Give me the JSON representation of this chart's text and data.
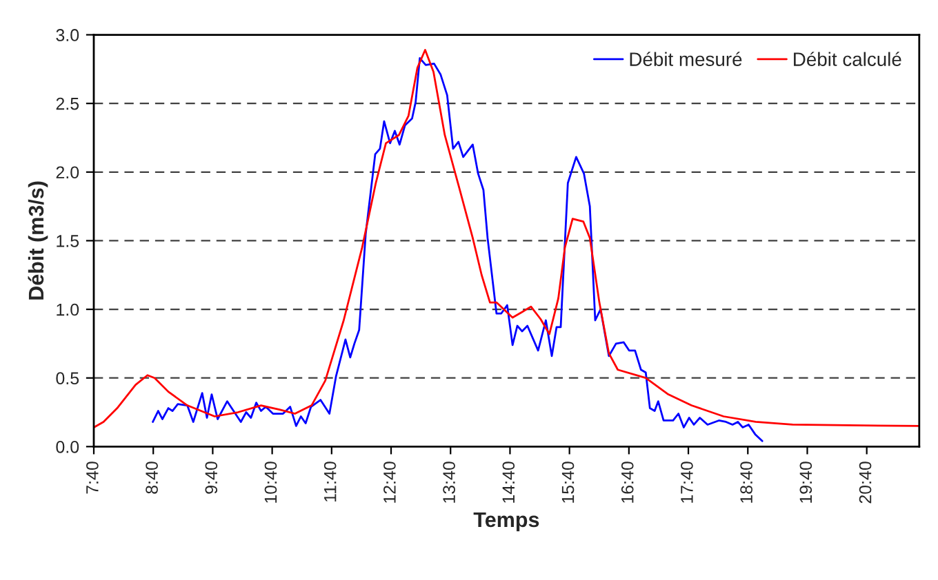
{
  "chart_data": {
    "type": "line",
    "xlabel": "Temps",
    "ylabel": "Débit (m3/s)",
    "xlim": [
      7.667,
      21.55
    ],
    "ylim": [
      0,
      3.0
    ],
    "xticks": [
      {
        "value": 7.667,
        "label": "7:40"
      },
      {
        "value": 8.667,
        "label": "8:40"
      },
      {
        "value": 9.667,
        "label": "9:40"
      },
      {
        "value": 10.667,
        "label": "10:40"
      },
      {
        "value": 11.667,
        "label": "11:40"
      },
      {
        "value": 12.667,
        "label": "12:40"
      },
      {
        "value": 13.667,
        "label": "13:40"
      },
      {
        "value": 14.667,
        "label": "14:40"
      },
      {
        "value": 15.667,
        "label": "15:40"
      },
      {
        "value": 16.667,
        "label": "16:40"
      },
      {
        "value": 17.667,
        "label": "17:40"
      },
      {
        "value": 18.667,
        "label": "18:40"
      },
      {
        "value": 19.667,
        "label": "19:40"
      },
      {
        "value": 20.667,
        "label": "20:40"
      }
    ],
    "yticks": [
      {
        "value": 0,
        "label": "0.0"
      },
      {
        "value": 0.5,
        "label": "0.5"
      },
      {
        "value": 1.0,
        "label": "1.0"
      },
      {
        "value": 1.5,
        "label": "1.5"
      },
      {
        "value": 2.0,
        "label": "2.0"
      },
      {
        "value": 2.5,
        "label": "2.5"
      },
      {
        "value": 3.0,
        "label": "3.0"
      }
    ],
    "grid": "y",
    "legend": "top right",
    "marker": "none",
    "line_style": "solid",
    "series": [
      {
        "name": "Débit mesuré",
        "color": "#0000ff",
        "x": [
          8.66,
          8.75,
          8.82,
          8.92,
          8.99,
          9.08,
          9.24,
          9.34,
          9.49,
          9.57,
          9.65,
          9.75,
          9.91,
          10.14,
          10.23,
          10.31,
          10.4,
          10.48,
          10.56,
          10.68,
          10.85,
          10.97,
          11.07,
          11.15,
          11.23,
          11.32,
          11.48,
          11.63,
          11.74,
          11.9,
          11.98,
          12.05,
          12.13,
          12.24,
          12.4,
          12.48,
          12.55,
          12.65,
          12.73,
          12.81,
          12.9,
          13.02,
          13.08,
          13.15,
          13.25,
          13.39,
          13.5,
          13.61,
          13.71,
          13.8,
          13.88,
          14.04,
          14.13,
          14.22,
          14.29,
          14.44,
          14.52,
          14.62,
          14.71,
          14.79,
          14.87,
          14.96,
          15.14,
          15.27,
          15.37,
          15.45,
          15.52,
          15.64,
          15.78,
          15.91,
          16.01,
          16.1,
          16.19,
          16.33,
          16.45,
          16.58,
          16.67,
          16.77,
          16.87,
          16.95,
          17.02,
          17.1,
          17.16,
          17.25,
          17.41,
          17.5,
          17.59,
          17.68,
          17.76,
          17.86,
          17.99,
          18.18,
          18.3,
          18.41,
          18.5,
          18.58,
          18.68,
          18.79,
          18.91
        ],
        "values": [
          0.18,
          0.26,
          0.2,
          0.28,
          0.26,
          0.31,
          0.3,
          0.18,
          0.39,
          0.21,
          0.38,
          0.2,
          0.33,
          0.18,
          0.25,
          0.21,
          0.32,
          0.26,
          0.29,
          0.24,
          0.24,
          0.29,
          0.15,
          0.22,
          0.17,
          0.29,
          0.34,
          0.24,
          0.51,
          0.78,
          0.65,
          0.75,
          0.85,
          1.55,
          2.13,
          2.17,
          2.37,
          2.21,
          2.3,
          2.2,
          2.34,
          2.39,
          2.51,
          2.83,
          2.78,
          2.79,
          2.71,
          2.56,
          2.17,
          2.22,
          2.11,
          2.2,
          1.99,
          1.87,
          1.52,
          0.97,
          0.97,
          1.03,
          0.74,
          0.88,
          0.84,
          0.88,
          0.7,
          0.92,
          0.66,
          0.87,
          0.87,
          1.92,
          2.11,
          1.99,
          1.75,
          0.92,
          1.0,
          0.66,
          0.75,
          0.76,
          0.7,
          0.7,
          0.56,
          0.54,
          0.28,
          0.26,
          0.33,
          0.19,
          0.19,
          0.24,
          0.14,
          0.21,
          0.16,
          0.21,
          0.16,
          0.19,
          0.18,
          0.16,
          0.18,
          0.14,
          0.16,
          0.09,
          0.04
        ]
      },
      {
        "name": "Débit calculé",
        "color": "#ff0000",
        "x": [
          7.667,
          7.83,
          8.06,
          8.37,
          8.57,
          8.69,
          8.92,
          9.24,
          9.7,
          10.09,
          10.48,
          10.79,
          11.05,
          11.33,
          11.56,
          11.87,
          12.18,
          12.41,
          12.58,
          12.8,
          12.96,
          13.11,
          13.24,
          13.38,
          13.57,
          13.81,
          14.04,
          14.19,
          14.33,
          14.44,
          14.71,
          14.87,
          15.02,
          15.18,
          15.33,
          15.48,
          15.59,
          15.72,
          15.9,
          16.01,
          16.17,
          16.33,
          16.48,
          16.95,
          17.33,
          17.72,
          18.26,
          18.8,
          19.42,
          21.55
        ],
        "values": [
          0.14,
          0.18,
          0.28,
          0.45,
          0.52,
          0.5,
          0.4,
          0.3,
          0.22,
          0.25,
          0.3,
          0.27,
          0.24,
          0.3,
          0.48,
          0.92,
          1.45,
          1.92,
          2.21,
          2.27,
          2.41,
          2.76,
          2.89,
          2.73,
          2.27,
          1.89,
          1.52,
          1.25,
          1.05,
          1.05,
          0.94,
          0.98,
          1.02,
          0.93,
          0.82,
          1.08,
          1.45,
          1.66,
          1.64,
          1.52,
          1.05,
          0.68,
          0.56,
          0.5,
          0.38,
          0.3,
          0.22,
          0.18,
          0.16,
          0.15
        ]
      }
    ]
  }
}
